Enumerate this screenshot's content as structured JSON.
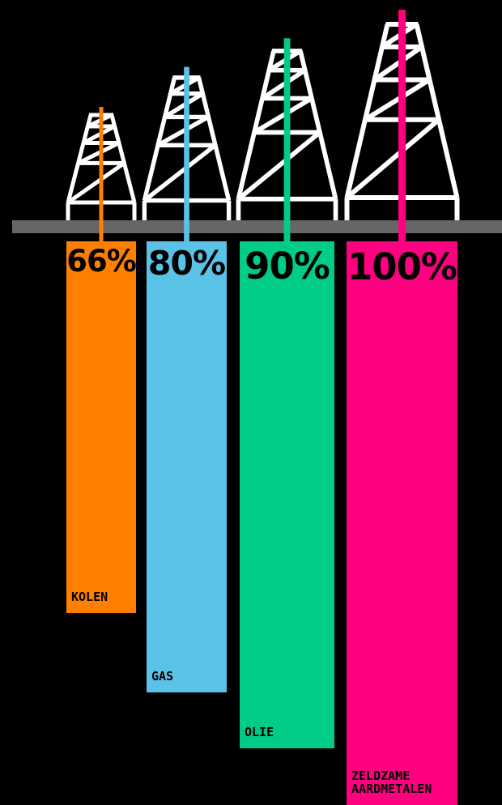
{
  "chart_data": {
    "type": "bar",
    "orientation": "vertical-downward",
    "categories": [
      "KOLEN",
      "GAS",
      "OLIE",
      "ZELDZAME AARDMETALEN"
    ],
    "values": [
      66,
      80,
      90,
      100
    ],
    "value_labels": [
      "66%",
      "80%",
      "90%",
      "100%"
    ],
    "label_lines": [
      [
        "KOLEN"
      ],
      [
        "GAS"
      ],
      [
        "OLIE"
      ],
      [
        "ZELDZAME",
        "AARDMETALEN"
      ]
    ],
    "colors": [
      "#ff7f00",
      "#5bc2e7",
      "#00cc88",
      "#ff0080"
    ],
    "ylim": [
      0,
      100
    ],
    "unit": "%",
    "background": "#000000",
    "ground_color": "#666666",
    "tower_color": "#ffffff",
    "icon": "drilling-tower-icon",
    "grid": false,
    "legend": "none"
  }
}
